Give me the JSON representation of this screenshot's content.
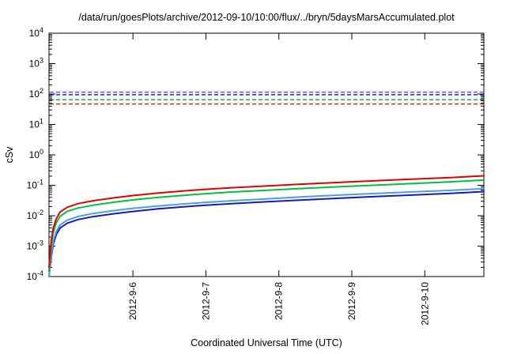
{
  "chart_data": {
    "type": "line",
    "title": "/data/run/goesPlots/archive/2012-09-10/10:00/flux/../bryn/5daysMarsAccumulated.plot",
    "xlabel": "Coordinated Universal Time (UTC)",
    "ylabel": "cSv",
    "y_scale": "log",
    "ylim": [
      0.0001,
      10000
    ],
    "y_tick_exponents": [
      4,
      3,
      2,
      1,
      0,
      -1,
      -2,
      -3,
      -4
    ],
    "x_range_days": [
      0,
      5.96
    ],
    "x_ticks": [
      {
        "pos": 1.15,
        "label": "2012-9-6"
      },
      {
        "pos": 2.15,
        "label": "2012-9-7"
      },
      {
        "pos": 3.15,
        "label": "2012-9-8"
      },
      {
        "pos": 4.15,
        "label": "2012-9-9"
      },
      {
        "pos": 5.15,
        "label": "2012-9-10"
      }
    ],
    "grid": false,
    "legend": "none",
    "limit_lines": [
      {
        "name": "upper-limit-purple",
        "value": 115,
        "color": "#8844cc"
      },
      {
        "name": "upper-limit-blue",
        "value": 95,
        "color": "#2020e0"
      },
      {
        "name": "mid-limit-green",
        "value": 65,
        "color": "#00b838"
      },
      {
        "name": "lower-limit-red",
        "value": 47,
        "color": "#c03030"
      }
    ],
    "x": [
      0,
      0.03,
      0.06,
      0.1,
      0.15,
      0.25,
      0.4,
      0.6,
      0.9,
      1.15,
      1.5,
      2.0,
      2.5,
      3.0,
      3.5,
      4.0,
      4.5,
      5.0,
      5.5,
      5.96
    ],
    "series": [
      {
        "name": "accumulated-dose-red",
        "color": "#e00000",
        "values": [
          0.0002,
          0.0015,
          0.004,
          0.008,
          0.013,
          0.019,
          0.025,
          0.031,
          0.039,
          0.046,
          0.056,
          0.07,
          0.083,
          0.096,
          0.11,
          0.125,
          0.142,
          0.16,
          0.18,
          0.205
        ]
      },
      {
        "name": "accumulated-dose-green",
        "color": "#00c040",
        "values": [
          0.00015,
          0.0011,
          0.0029,
          0.0058,
          0.0094,
          0.014,
          0.018,
          0.022,
          0.028,
          0.033,
          0.04,
          0.05,
          0.06,
          0.069,
          0.079,
          0.09,
          0.102,
          0.115,
          0.13,
          0.148
        ]
      },
      {
        "name": "accumulated-dose-lightblue",
        "color": "#4aa0d8",
        "values": [
          0.0001,
          0.00055,
          0.0015,
          0.003,
          0.0049,
          0.0072,
          0.0095,
          0.0118,
          0.0148,
          0.0175,
          0.021,
          0.026,
          0.031,
          0.036,
          0.042,
          0.048,
          0.054,
          0.061,
          0.068,
          0.078
        ]
      },
      {
        "name": "accumulated-dose-blue",
        "color": "#1818c0",
        "values": [
          0.0001,
          0.00045,
          0.0012,
          0.0024,
          0.0039,
          0.0057,
          0.0075,
          0.0093,
          0.0117,
          0.0138,
          0.0168,
          0.021,
          0.025,
          0.029,
          0.033,
          0.038,
          0.043,
          0.048,
          0.054,
          0.062
        ]
      }
    ]
  }
}
